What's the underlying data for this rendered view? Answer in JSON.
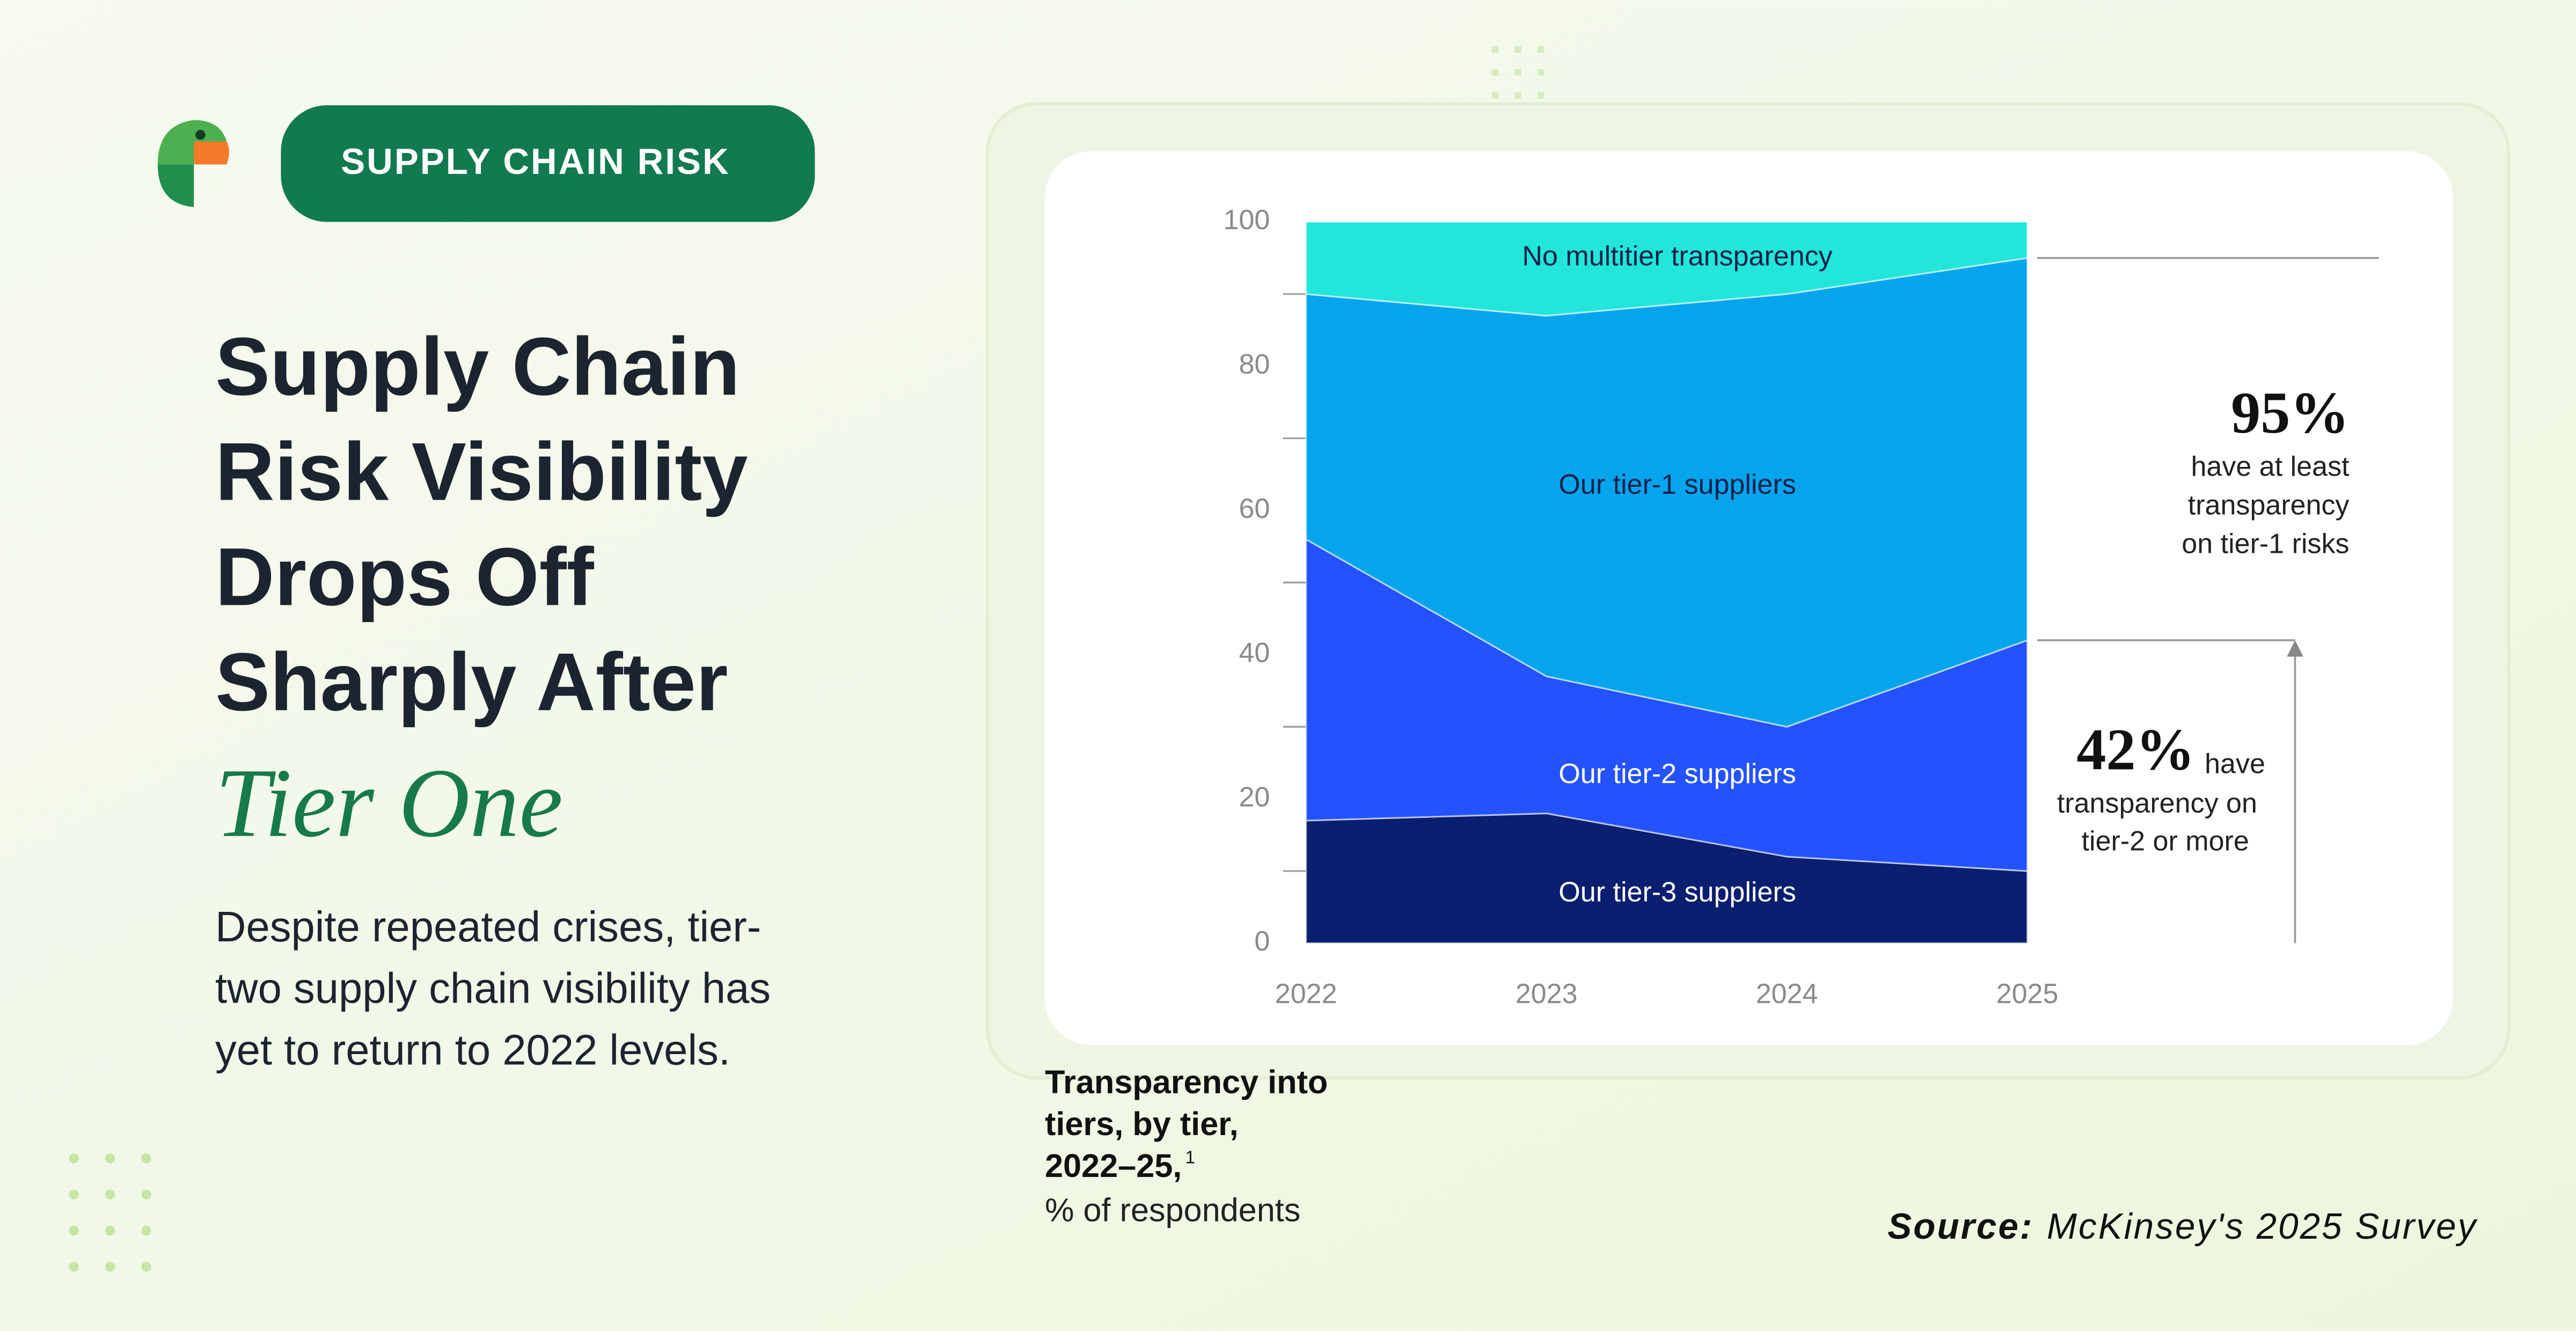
{
  "header": {
    "badge": "SUPPLY CHAIN RISK",
    "title": [
      "Supply Chain",
      "Risk Visibility",
      "Drops Off",
      "Sharply After"
    ],
    "highlight": "Tier One",
    "description": [
      "Despite repeated crises, tier-",
      "two supply chain visibility has",
      "yet to return to 2022 levels."
    ]
  },
  "chart_data": {
    "type": "stacked_area",
    "title": [
      "Transparency into",
      "tiers, by tier,",
      "2022–25,"
    ],
    "footnote": "1",
    "subtitle": "% of respondents",
    "categories": [
      "2022",
      "2023",
      "2024",
      "2025"
    ],
    "series": [
      {
        "name": "Our tier-3 suppliers",
        "color": "#0b1f70",
        "values": [
          17,
          18,
          12,
          10
        ]
      },
      {
        "name": "Our tier-2 suppliers",
        "color": "#2452ff",
        "values": [
          39,
          19,
          18,
          32
        ]
      },
      {
        "name": "Our tier-1 suppliers",
        "color": "#05a5ee",
        "values": [
          34,
          50,
          60,
          53
        ]
      },
      {
        "name": "No multitier transparency",
        "color": "#22e6d9",
        "values": [
          10,
          13,
          10,
          5
        ]
      }
    ],
    "ylim": [
      0,
      100
    ],
    "yticks": [
      0,
      20,
      40,
      60,
      80,
      100
    ],
    "minor_yticks": [
      10,
      30,
      50,
      70,
      90
    ],
    "annotations": [
      {
        "value": 95,
        "label": "95%",
        "text": [
          "have at least",
          "transparency",
          "on tier-1 risks"
        ]
      },
      {
        "value": 42,
        "label": "42%",
        "text": [
          "have",
          "transparency on",
          "tier-2 or more"
        ]
      }
    ]
  },
  "source": {
    "label": "Source:",
    "text": "McKinsey's 2025 Survey"
  }
}
